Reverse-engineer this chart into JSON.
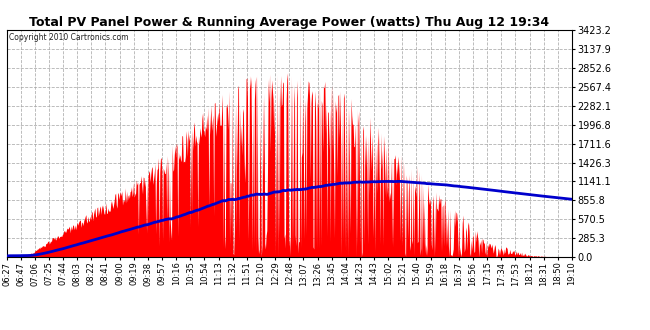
{
  "title": "Total PV Panel Power & Running Average Power (watts) Thu Aug 12 19:34",
  "copyright": "Copyright 2010 Cartronics.com",
  "yticks": [
    0.0,
    285.3,
    570.5,
    855.8,
    1141.1,
    1426.3,
    1711.6,
    1996.8,
    2282.1,
    2567.4,
    2852.6,
    3137.9,
    3423.2
  ],
  "ymax": 3423.2,
  "bg_color": "#ffffff",
  "plot_bg_color": "#ffffff",
  "grid_color": "#aaaaaa",
  "fill_color": "#ff0000",
  "line_color": "#0000cc",
  "title_color": "#000000",
  "xtick_labels": [
    "06:27",
    "06:47",
    "07:06",
    "07:25",
    "07:44",
    "08:03",
    "08:22",
    "08:41",
    "09:00",
    "09:19",
    "09:38",
    "09:57",
    "10:16",
    "10:35",
    "10:54",
    "11:13",
    "11:32",
    "11:51",
    "12:10",
    "12:29",
    "12:48",
    "13:07",
    "13:26",
    "13:45",
    "14:04",
    "14:23",
    "14:43",
    "15:02",
    "15:21",
    "15:40",
    "15:59",
    "16:18",
    "16:37",
    "16:56",
    "17:15",
    "17:34",
    "17:53",
    "18:12",
    "18:31",
    "18:50",
    "19:10"
  ],
  "num_points": 820
}
